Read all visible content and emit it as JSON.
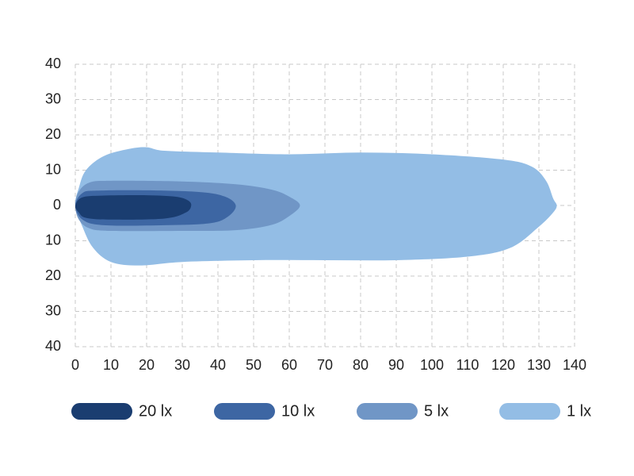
{
  "chart_data": {
    "type": "contour",
    "xlim": [
      0,
      140
    ],
    "xticks": [
      0,
      10,
      20,
      30,
      40,
      50,
      60,
      70,
      80,
      90,
      100,
      110,
      120,
      130,
      140
    ],
    "ylim": [
      -40,
      40
    ],
    "yticks": [
      {
        "value": 40,
        "label": "40"
      },
      {
        "value": 30,
        "label": "30"
      },
      {
        "value": 20,
        "label": "20"
      },
      {
        "value": 10,
        "label": "10"
      },
      {
        "value": 0,
        "label": "0"
      },
      {
        "value": -10,
        "label": "10"
      },
      {
        "value": -20,
        "label": "20"
      },
      {
        "value": -30,
        "label": "30"
      },
      {
        "value": -40,
        "label": "40"
      }
    ],
    "grid": true,
    "legend": "bottom",
    "series": [
      {
        "name": "20 lx",
        "color": "#1a3d70",
        "x": [
          0,
          2,
          8,
          20,
          28,
          31.5,
          32.5,
          31,
          25,
          10,
          3,
          1
        ],
        "values": [
          0,
          2.3,
          2.8,
          2.9,
          2.5,
          1.5,
          0,
          -2,
          -3.7,
          -4,
          -3.5,
          -2
        ]
      },
      {
        "name": "10 lx",
        "color": "#3d66a3",
        "x": [
          0,
          2,
          6,
          20,
          35,
          42,
          45,
          43,
          38,
          25,
          8,
          2
        ],
        "values": [
          0,
          3.5,
          4.2,
          4.3,
          3.8,
          2.5,
          0,
          -3,
          -5,
          -5.6,
          -5.6,
          -4
        ]
      },
      {
        "name": "5 lx",
        "color": "#7096c6",
        "x": [
          0,
          1,
          4,
          10,
          30,
          45,
          55,
          60,
          63,
          60,
          55,
          45,
          30,
          10,
          4,
          1
        ],
        "values": [
          0,
          4,
          6.5,
          7,
          6.8,
          6,
          4.5,
          2.5,
          0,
          -3,
          -5.5,
          -7,
          -7.2,
          -7.2,
          -6.5,
          -4
        ]
      },
      {
        "name": "1 lx",
        "color": "#93bde5",
        "x": [
          0,
          1,
          3,
          8,
          15,
          20,
          25,
          40,
          60,
          80,
          100,
          120,
          128,
          132,
          134,
          135,
          134,
          130,
          122,
          110,
          90,
          70,
          50,
          30,
          18,
          10,
          5,
          2
        ],
        "values": [
          0,
          5,
          10,
          14,
          16,
          16.5,
          15.5,
          15,
          14.5,
          15,
          14.5,
          13,
          11,
          7,
          2,
          0,
          -2,
          -6,
          -12,
          -14.5,
          -15.5,
          -15.5,
          -15.5,
          -16,
          -17,
          -16,
          -12,
          -6
        ]
      }
    ]
  }
}
